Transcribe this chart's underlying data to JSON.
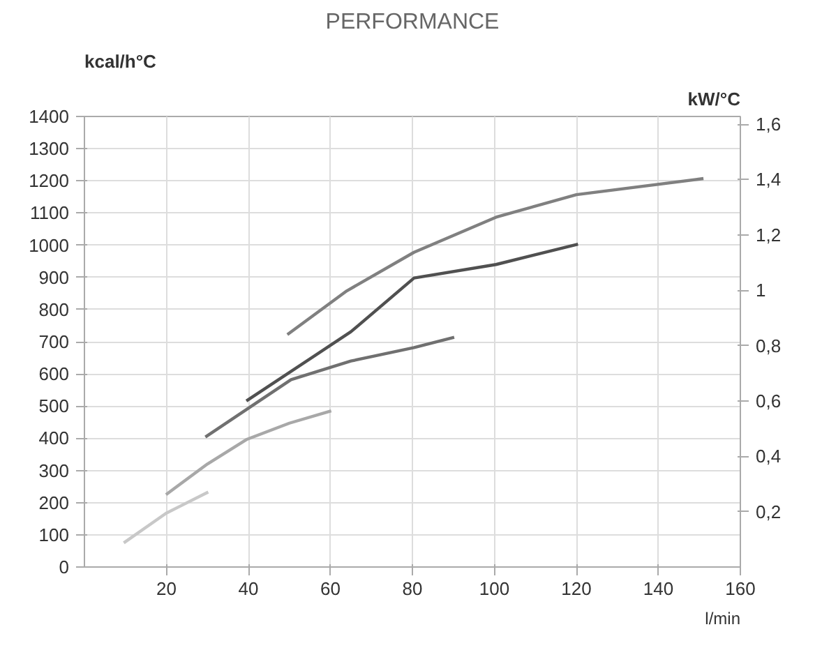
{
  "chart_data": {
    "type": "line",
    "title": "PERFORMANCE",
    "ylabel": "kcal/h°C",
    "y2label": "kW/°C",
    "xlabel": "l/min",
    "xlim": [
      0,
      160
    ],
    "xticks": [
      20,
      40,
      60,
      80,
      100,
      120,
      140,
      160
    ],
    "ylim": [
      0,
      1400
    ],
    "yticks": [
      0,
      100,
      200,
      300,
      400,
      500,
      600,
      700,
      800,
      900,
      1000,
      1100,
      1200,
      1300,
      1400
    ],
    "y2lim": [
      0,
      1.628
    ],
    "y2ticks": [
      {
        "value": 0.2,
        "label": "0,2"
      },
      {
        "value": 0.4,
        "label": "0,4"
      },
      {
        "value": 0.6,
        "label": "0,6"
      },
      {
        "value": 0.8,
        "label": "0,8"
      },
      {
        "value": 1,
        "label": "1"
      },
      {
        "value": 1.2,
        "label": "1,2"
      },
      {
        "value": 1.4,
        "label": "1,4"
      },
      {
        "value": 1.6,
        "label": "1,6"
      }
    ],
    "grid": true,
    "marker": "none",
    "line_style": "solid",
    "series": [
      {
        "color": "#c8c8c8",
        "x": [
          9.6,
          19.9,
          30.2
        ],
        "values": [
          75,
          167,
          233
        ]
      },
      {
        "color": "#a8a8a8",
        "x": [
          19.9,
          30,
          39.5,
          50,
          60.2
        ],
        "values": [
          225,
          320,
          396,
          447,
          485
        ]
      },
      {
        "color": "#707070",
        "x": [
          29.5,
          50.4,
          65,
          80.4,
          90.2
        ],
        "values": [
          404,
          582,
          640,
          682,
          714
        ]
      },
      {
        "color": "#505050",
        "x": [
          39.5,
          65,
          80.4,
          100.4,
          120.4
        ],
        "values": [
          516,
          731,
          898,
          940,
          1003
        ]
      },
      {
        "color": "#808080",
        "x": [
          49.5,
          64,
          80.4,
          100.4,
          120,
          151
        ],
        "values": [
          722,
          858,
          978,
          1087,
          1157,
          1207
        ]
      }
    ]
  }
}
